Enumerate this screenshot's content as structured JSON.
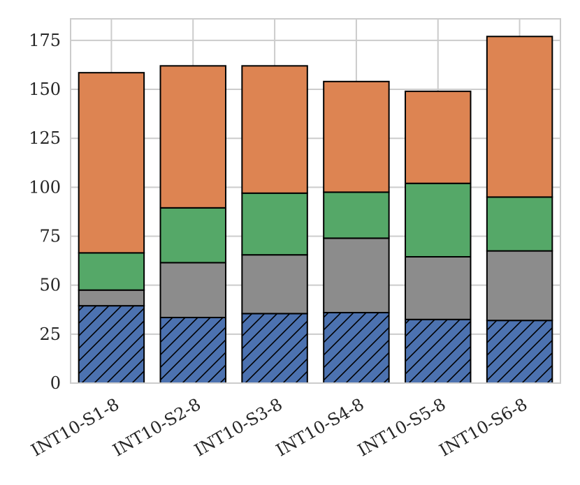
{
  "chart_data": {
    "type": "bar",
    "stacked": true,
    "categories": [
      "INT10-S1-8",
      "INT10-S2-8",
      "INT10-S3-8",
      "INT10-S4-8",
      "INT10-S5-8",
      "INT10-S6-8"
    ],
    "series": [
      {
        "values": [
          39.5,
          33.5,
          35.5,
          36.0,
          32.5,
          32.0
        ],
        "color": "#4c72b0",
        "hatch": "diagonal"
      },
      {
        "values": [
          8.0,
          28.0,
          30.0,
          38.0,
          32.0,
          35.5
        ],
        "color": "#8c8c8c"
      },
      {
        "values": [
          19.0,
          28.0,
          31.5,
          23.5,
          37.5,
          27.5
        ],
        "color": "#55a868"
      },
      {
        "values": [
          92.0,
          72.5,
          65.0,
          56.5,
          47.0,
          82.0
        ],
        "color": "#dd8452"
      }
    ],
    "yticks": [
      0,
      25,
      50,
      75,
      100,
      125,
      150,
      175
    ],
    "ylim": [
      0,
      186
    ],
    "grid": true,
    "title": "",
    "xlabel": "",
    "ylabel": ""
  }
}
